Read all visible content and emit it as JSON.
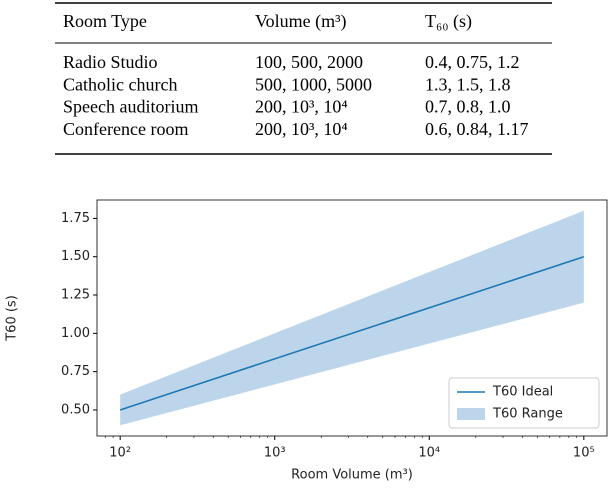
{
  "table": {
    "header": [
      "Room Type",
      "Volume (m³)",
      "T₆₀ (s)"
    ],
    "rows": [
      [
        "Radio Studio",
        "100, 500, 2000",
        "0.4, 0.75, 1.2"
      ],
      [
        "Catholic church",
        "500, 1000, 5000",
        "1.3, 1.5, 1.8"
      ],
      [
        "Speech auditorium",
        "200, 10³, 10⁴",
        "0.7, 0.8, 1.0"
      ],
      [
        "Conference room",
        "200, 10³, 10⁴",
        "0.6, 0.84, 1.17"
      ]
    ]
  },
  "chart_data": {
    "type": "line",
    "x_label": "Room Volume (m³)",
    "y_label": "T60 (s)",
    "x": [
      100,
      100000
    ],
    "xscale": "log",
    "xlim": [
      70.8,
      141254
    ],
    "xticks": [
      {
        "value": 100,
        "label": "10²"
      },
      {
        "value": 1000,
        "label": "10³"
      },
      {
        "value": 10000,
        "label": "10⁴"
      },
      {
        "value": 100000,
        "label": "10⁵"
      }
    ],
    "ylim": [
      0.33,
      1.87
    ],
    "yticks": [
      0.5,
      0.75,
      1.0,
      1.25,
      1.5,
      1.75
    ],
    "legend": "lower right",
    "series": [
      {
        "name": "T60 Ideal",
        "color": "#1f77b4",
        "values": [
          0.5,
          1.5
        ]
      },
      {
        "name": "T60 Range",
        "color": "#bcd5ea",
        "lower": [
          0.4,
          1.2
        ],
        "upper": [
          0.6,
          1.8
        ]
      }
    ]
  }
}
